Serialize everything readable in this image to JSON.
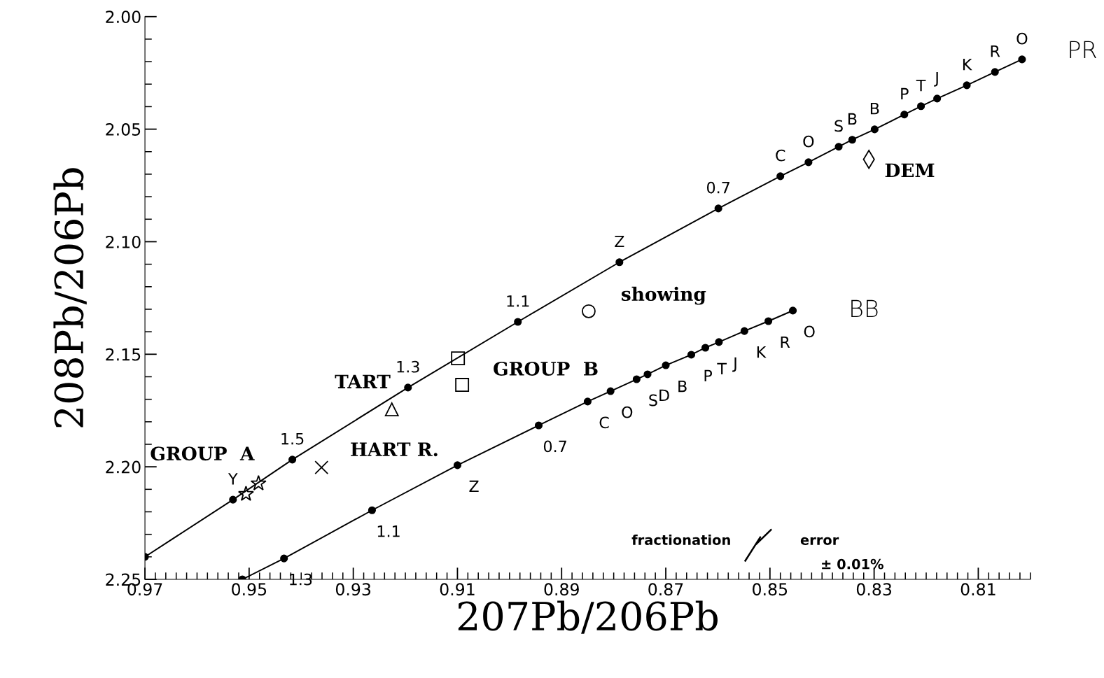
{
  "chart_data": {
    "type": "line",
    "xlabel": "207Pb/206Pb",
    "ylabel": "208Pb/206Pb",
    "xlim": [
      0.97,
      0.8
    ],
    "ylim": [
      2.25,
      2.0
    ],
    "xticks": [
      0.97,
      0.95,
      0.93,
      0.91,
      0.89,
      0.87,
      0.85,
      0.83,
      0.81
    ],
    "yticks": [
      {
        "value": 2.0,
        "label": "2.00"
      },
      2.05,
      {
        "value": 2.1,
        "label": "2.10"
      },
      2.15,
      {
        "value": 2.2,
        "label": "2.20"
      },
      2.25
    ],
    "marker": "circle",
    "line_style": "solid",
    "series": [
      {
        "color": "#000000",
        "x": [
          0.97,
          0.9531,
          0.9417,
          0.9195,
          0.8984,
          0.8789,
          0.8599,
          0.848,
          0.8426,
          0.8368,
          0.8342,
          0.8299,
          0.8242,
          0.821,
          0.8179,
          0.8122,
          0.8068,
          0.8016
        ],
        "values": [
          2.24,
          2.2146,
          2.1968,
          2.1648,
          2.1356,
          2.1091,
          2.0852,
          2.0709,
          2.0647,
          2.0578,
          2.0547,
          2.0501,
          2.0435,
          2.0398,
          2.0364,
          2.0305,
          2.0246,
          2.019
        ]
      },
      {
        "color": "#000000",
        "x": [
          0.9513,
          0.9433,
          0.9264,
          0.91,
          0.8944,
          0.885,
          0.8806,
          0.8756,
          0.8735,
          0.87,
          0.8651,
          0.8624,
          0.8598,
          0.8549,
          0.8503,
          0.8456
        ],
        "values": [
          2.25,
          2.2407,
          2.2193,
          2.1993,
          2.1816,
          2.171,
          2.1664,
          2.1611,
          2.1589,
          2.1549,
          2.1502,
          2.1471,
          2.1446,
          2.1397,
          2.1353,
          2.1306
        ]
      },
      {
        "type": "scatter",
        "marker": "star",
        "color": "#000000",
        "x": [
          0.9506,
          0.9482
        ],
        "values": [
          2.2121,
          2.2074
        ]
      },
      {
        "type": "scatter",
        "marker": "triangle",
        "color": "#000000",
        "x": [
          0.9226
        ],
        "values": [
          2.1745
        ]
      },
      {
        "type": "scatter",
        "marker": "square",
        "color": "#000000",
        "x": [
          0.9099,
          0.9091
        ],
        "values": [
          2.1518,
          2.1636
        ]
      },
      {
        "type": "scatter",
        "marker": "circle",
        "color": "#000000",
        "x": [
          0.8848
        ],
        "values": [
          2.1309
        ]
      },
      {
        "type": "scatter",
        "marker": "diamond",
        "color": "#000000",
        "x": [
          0.831
        ],
        "values": [
          2.0634
        ]
      },
      {
        "type": "scatter",
        "marker": "cross",
        "color": "#000000",
        "x": [
          0.9361
        ],
        "values": [
          2.2003
        ]
      }
    ],
    "annotations": [
      {
        "text": "PR",
        "x": 0.8016,
        "y": 2.019
      },
      {
        "text": "Y",
        "x": 0.9531,
        "y": 2.2146
      },
      {
        "text": "1.5",
        "x": 0.9417,
        "y": 2.1968
      },
      {
        "text": "1.3",
        "x": 0.9195,
        "y": 2.1648
      },
      {
        "text": "1.1",
        "x": 0.8984,
        "y": 2.1356
      },
      {
        "text": "Z",
        "x": 0.8789,
        "y": 2.1091
      },
      {
        "text": "0.7",
        "x": 0.8599,
        "y": 2.0852
      },
      {
        "text": "C",
        "x": 0.848,
        "y": 2.0709
      },
      {
        "text": "O",
        "x": 0.8426,
        "y": 2.0647
      },
      {
        "text": "S",
        "x": 0.8368,
        "y": 2.0578
      },
      {
        "text": "B",
        "x": 0.8342,
        "y": 2.0547
      },
      {
        "text": "B",
        "x": 0.8299,
        "y": 2.0501
      },
      {
        "text": "P",
        "x": 0.8242,
        "y": 2.0435
      },
      {
        "text": "T",
        "x": 0.821,
        "y": 2.0398
      },
      {
        "text": "J",
        "x": 0.8179,
        "y": 2.0364
      },
      {
        "text": "K",
        "x": 0.8122,
        "y": 2.0305
      },
      {
        "text": "R",
        "x": 0.8068,
        "y": 2.0246
      },
      {
        "text": "O",
        "x": 0.8016,
        "y": 2.019
      },
      {
        "text": "BB",
        "x": 0.8456,
        "y": 2.1306
      },
      {
        "text": "1.3",
        "x": 0.9433,
        "y": 2.2407
      },
      {
        "text": "1.1",
        "x": 0.9264,
        "y": 2.2193
      },
      {
        "text": "Z",
        "x": 0.91,
        "y": 2.1993
      },
      {
        "text": "0.7",
        "x": 0.8944,
        "y": 2.1816
      },
      {
        "text": "C",
        "x": 0.885,
        "y": 2.171
      },
      {
        "text": "O",
        "x": 0.8806,
        "y": 2.1664
      },
      {
        "text": "S",
        "x": 0.8756,
        "y": 2.1611
      },
      {
        "text": "D",
        "x": 0.8735,
        "y": 2.1589
      },
      {
        "text": "B",
        "x": 0.87,
        "y": 2.1549
      },
      {
        "text": "P",
        "x": 0.8651,
        "y": 2.1502
      },
      {
        "text": "T",
        "x": 0.8624,
        "y": 2.1471
      },
      {
        "text": "J",
        "x": 0.8598,
        "y": 2.1446
      },
      {
        "text": "K",
        "x": 0.8549,
        "y": 2.1397
      },
      {
        "text": "R",
        "x": 0.8503,
        "y": 2.1353
      },
      {
        "text": "O",
        "x": 0.8456,
        "y": 2.1306
      },
      {
        "text": "GROUP  A",
        "x": 0.9506,
        "y": 2.2121
      },
      {
        "text": "TART",
        "x": 0.9226,
        "y": 2.1745
      },
      {
        "text": "GROUP  B",
        "x": 0.9091,
        "y": 2.1636
      },
      {
        "text": "showing",
        "x": 0.8848,
        "y": 2.1309
      },
      {
        "text": "DEM",
        "x": 0.831,
        "y": 2.0634
      },
      {
        "text": "HART R.",
        "x": 0.9361,
        "y": 2.2003
      },
      "fractionation",
      "error",
      "± 0.01%"
    ]
  }
}
